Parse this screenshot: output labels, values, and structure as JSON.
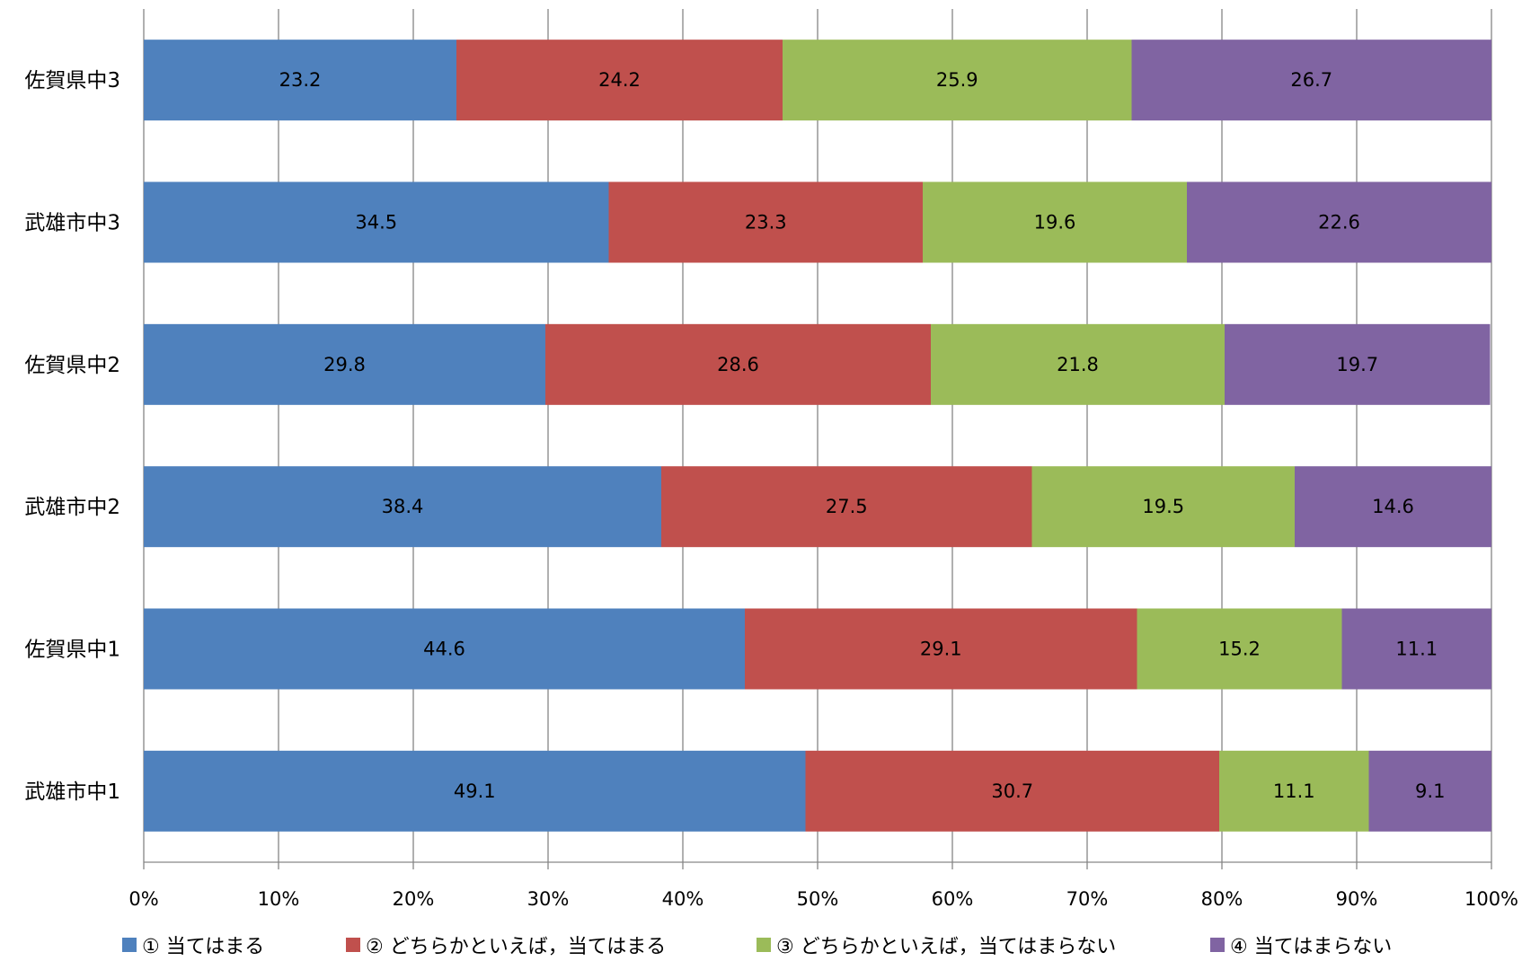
{
  "chart_data": {
    "type": "bar",
    "orientation": "horizontal",
    "stacked": "percent",
    "categories": [
      "佐賀県中3",
      "武雄市中3",
      "佐賀県中2",
      "武雄市中2",
      "佐賀県中1",
      "武雄市中1"
    ],
    "series": [
      {
        "name": "① 当てはまる",
        "color": "#4f81bd",
        "values": [
          23.2,
          34.5,
          29.8,
          38.4,
          44.6,
          49.1
        ]
      },
      {
        "name": "② どちらかといえば，当てはまる",
        "color": "#c0504d",
        "values": [
          24.2,
          23.3,
          28.6,
          27.5,
          29.1,
          30.7
        ]
      },
      {
        "name": "③ どちらかといえば，当てはまらない",
        "color": "#9bbb59",
        "values": [
          25.9,
          19.6,
          21.8,
          19.5,
          15.2,
          11.1
        ]
      },
      {
        "name": "④ 当てはまらない",
        "color": "#8064a2",
        "values": [
          26.7,
          22.6,
          19.7,
          14.6,
          11.1,
          9.1
        ]
      }
    ],
    "x_ticks": [
      "0%",
      "10%",
      "20%",
      "30%",
      "40%",
      "50%",
      "60%",
      "70%",
      "80%",
      "90%",
      "100%"
    ],
    "xlim": [
      0,
      100
    ],
    "grid": true,
    "legend_position": "bottom",
    "title": "",
    "xlabel": "",
    "ylabel": ""
  }
}
